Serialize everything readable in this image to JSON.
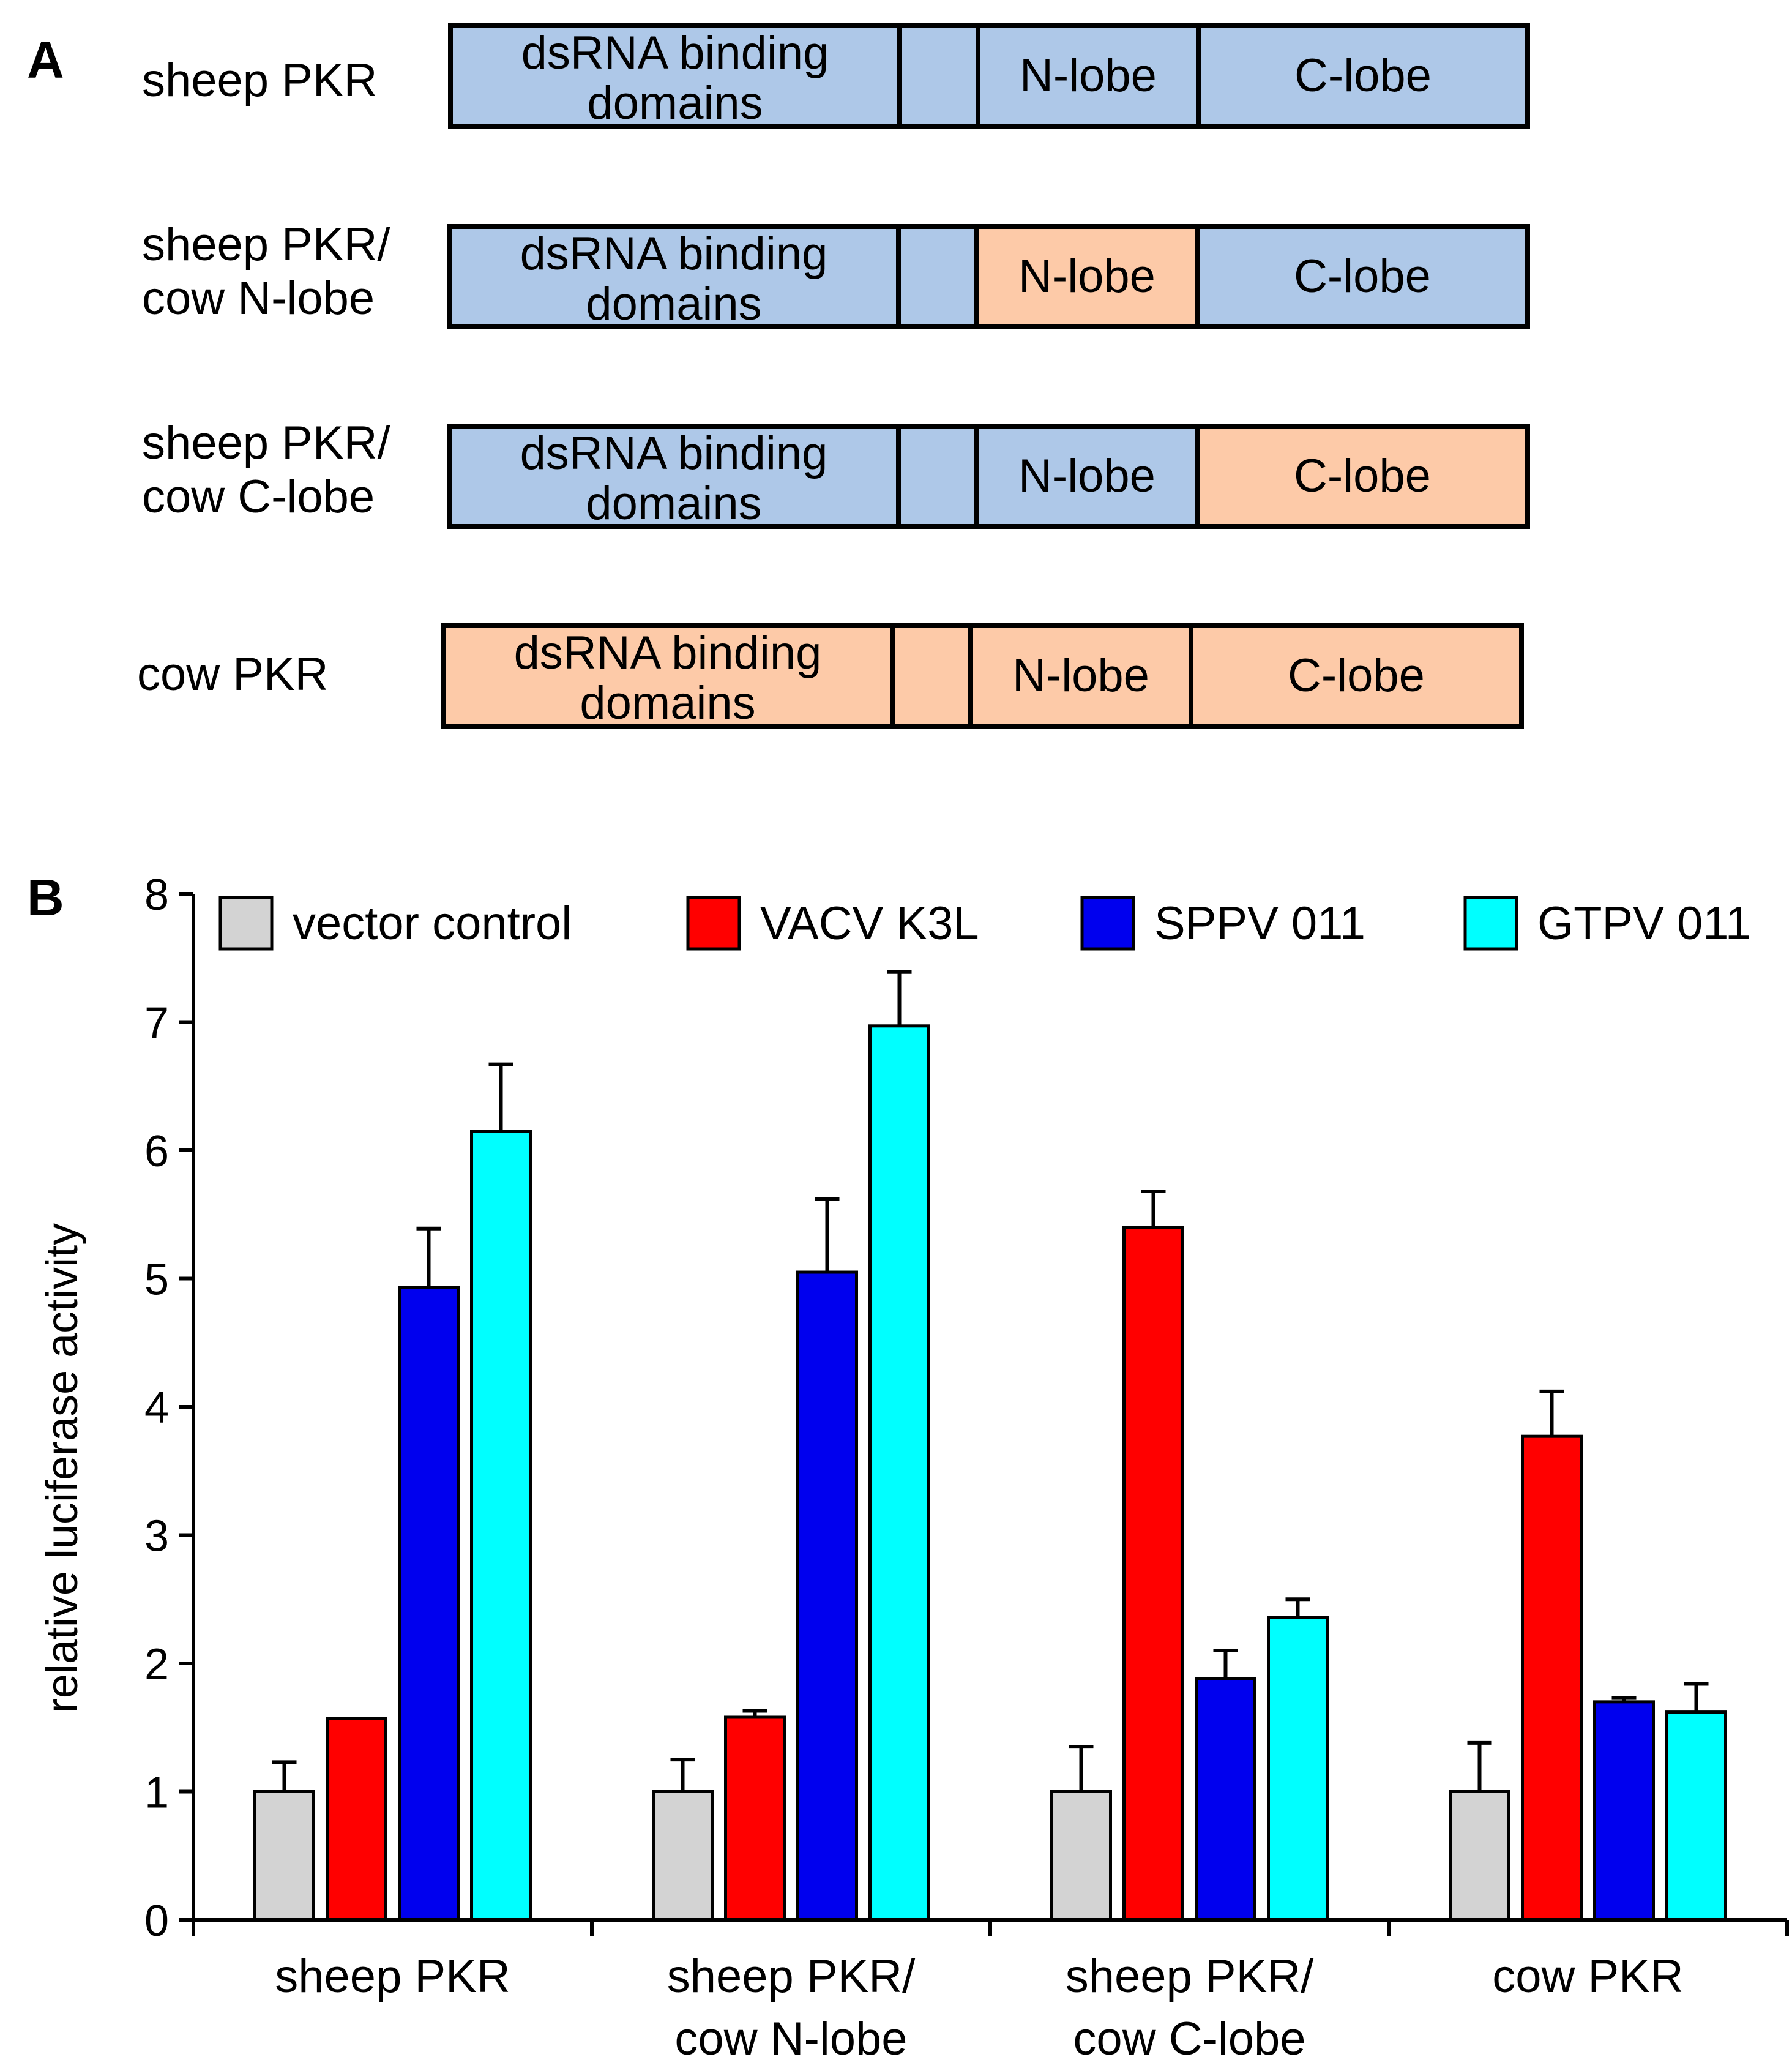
{
  "panel_a": {
    "letter": "A",
    "constructs": [
      {
        "label": "sheep PKR",
        "segments": [
          {
            "text": "dsRNA binding\ndomains",
            "color": "#aec8e8"
          },
          {
            "text": "",
            "color": "#aec8e8"
          },
          {
            "text": "N-lobe",
            "color": "#aec8e8"
          },
          {
            "text": "C-lobe",
            "color": "#aec8e8"
          }
        ]
      },
      {
        "label": "sheep PKR/\ncow N-lobe",
        "segments": [
          {
            "text": "dsRNA binding\ndomains",
            "color": "#aec8e8"
          },
          {
            "text": "",
            "color": "#aec8e8"
          },
          {
            "text": "N-lobe",
            "color": "#fdcaa8"
          },
          {
            "text": "C-lobe",
            "color": "#aec8e8"
          }
        ]
      },
      {
        "label": "sheep PKR/\ncow C-lobe",
        "segments": [
          {
            "text": "dsRNA binding\ndomains",
            "color": "#aec8e8"
          },
          {
            "text": "",
            "color": "#aec8e8"
          },
          {
            "text": "N-lobe",
            "color": "#aec8e8"
          },
          {
            "text": "C-lobe",
            "color": "#fdcaa8"
          }
        ]
      },
      {
        "label": "cow PKR",
        "segments": [
          {
            "text": "dsRNA binding\ndomains",
            "color": "#fdcaa8"
          },
          {
            "text": "",
            "color": "#fdcaa8"
          },
          {
            "text": "N-lobe",
            "color": "#fdcaa8"
          },
          {
            "text": "C-lobe",
            "color": "#fdcaa8"
          }
        ]
      }
    ]
  },
  "panel_b": {
    "letter": "B"
  },
  "chart_data": {
    "type": "bar",
    "title": "",
    "xlabel": "",
    "ylabel": "relative luciferase activity",
    "ylim": [
      0,
      8
    ],
    "yticks": [
      0,
      1,
      2,
      3,
      4,
      5,
      6,
      7,
      8
    ],
    "grid": false,
    "legend_position": "top",
    "categories": [
      "sheep PKR",
      "sheep PKR/\ncow N-lobe",
      "sheep PKR/\ncow C-lobe",
      "cow PKR"
    ],
    "series": [
      {
        "name": "vector control",
        "color": "#d3d3d3",
        "values": [
          1.0,
          1.0,
          1.0,
          1.0
        ],
        "errors": [
          0.23,
          0.25,
          0.35,
          0.38
        ]
      },
      {
        "name": "VACV K3L",
        "color": "#ff0000",
        "values": [
          1.57,
          1.58,
          5.4,
          3.77
        ],
        "errors": [
          0.0,
          0.05,
          0.28,
          0.35
        ]
      },
      {
        "name": "SPPV 011",
        "color": "#0000ee",
        "values": [
          4.93,
          5.05,
          1.88,
          1.7
        ],
        "errors": [
          0.46,
          0.57,
          0.22,
          0.03
        ]
      },
      {
        "name": "GTPV 011",
        "color": "#00ffff",
        "values": [
          6.15,
          6.97,
          2.36,
          1.62
        ],
        "errors": [
          0.52,
          0.42,
          0.14,
          0.22
        ]
      }
    ]
  }
}
